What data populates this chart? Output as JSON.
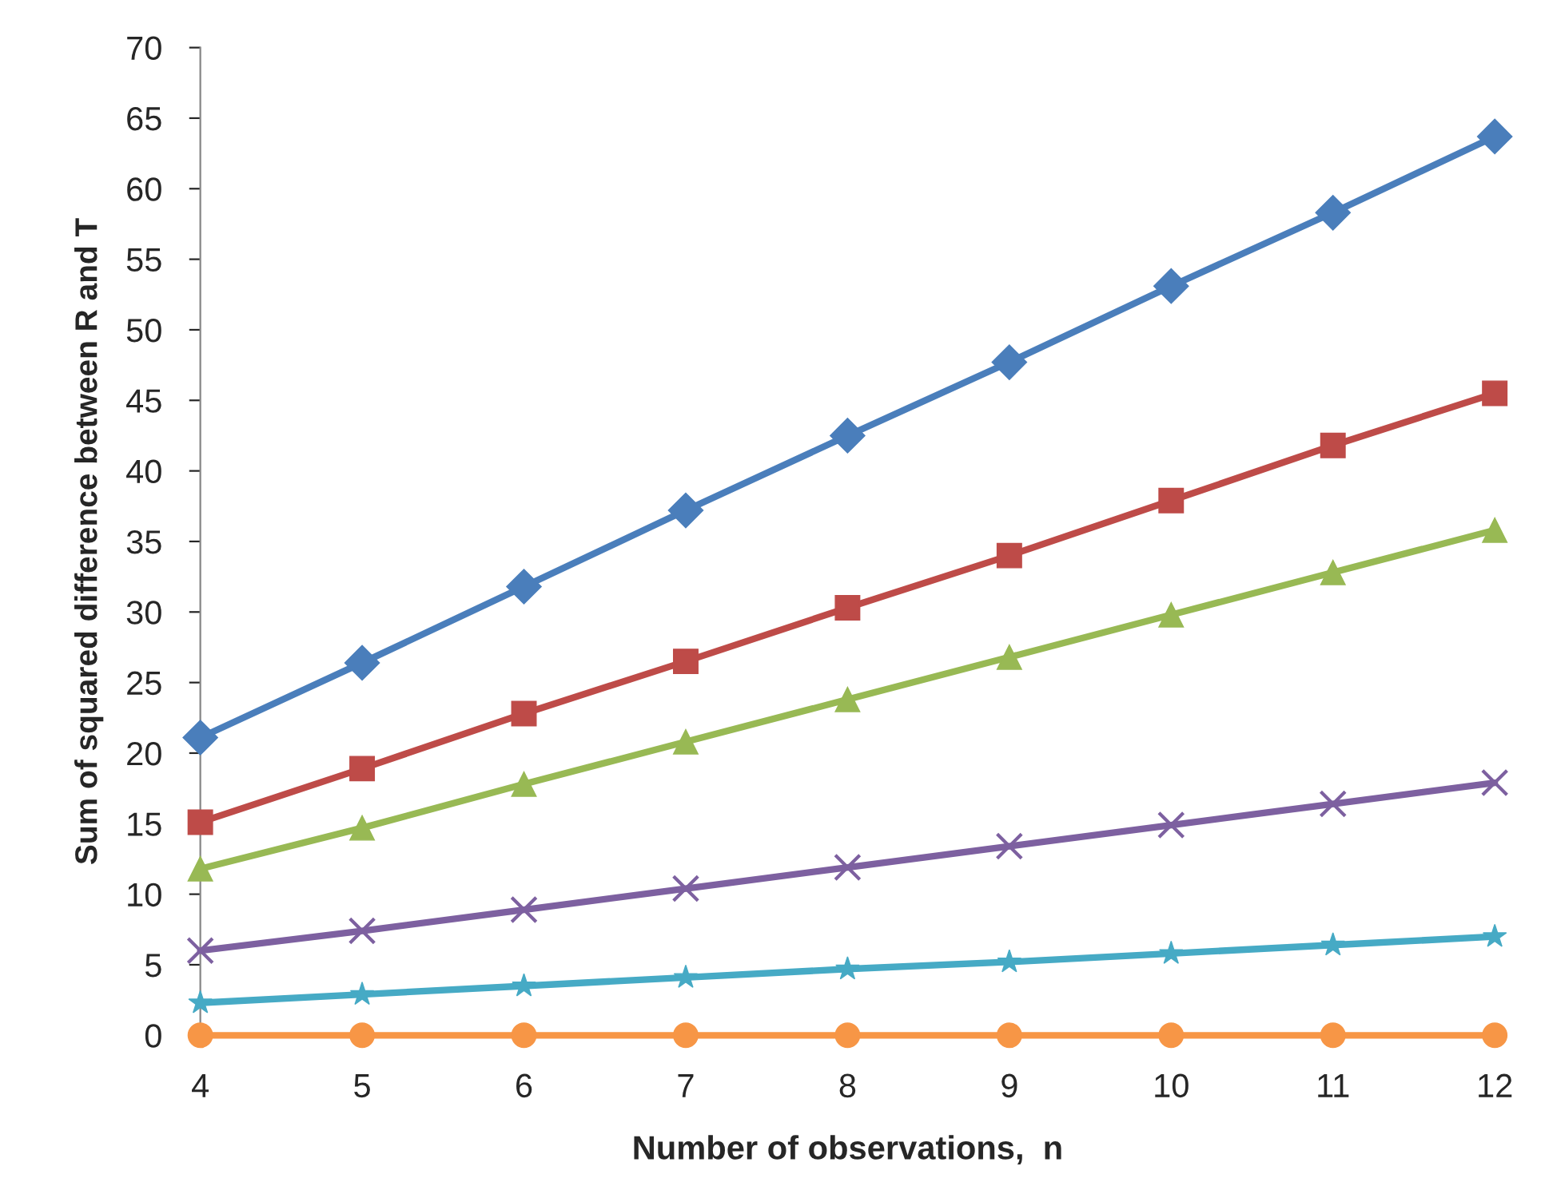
{
  "chart_data": {
    "type": "line",
    "xlabel": "Number of observations,  n",
    "ylabel": "Sum of squared difference between R and T",
    "x": [
      4,
      5,
      6,
      7,
      8,
      9,
      10,
      11,
      12
    ],
    "xlim": [
      4,
      12
    ],
    "xticks": [
      4,
      5,
      6,
      7,
      8,
      9,
      10,
      11,
      12
    ],
    "ylim": [
      0,
      70
    ],
    "yticks": [
      0,
      5,
      10,
      15,
      20,
      25,
      30,
      35,
      40,
      45,
      50,
      55,
      60,
      65,
      70
    ],
    "grid": false,
    "line_style": "solid",
    "series": [
      {
        "color": "#4a7ebb",
        "marker": "diamond",
        "values": [
          21.1,
          26.4,
          31.8,
          37.2,
          42.5,
          47.7,
          53.1,
          58.3,
          63.7
        ]
      },
      {
        "color": "#be4b48",
        "marker": "square",
        "values": [
          15.1,
          18.9,
          22.8,
          26.5,
          30.3,
          34.0,
          37.9,
          41.8,
          45.5
        ]
      },
      {
        "color": "#98b954",
        "marker": "triangle",
        "values": [
          11.8,
          14.7,
          17.8,
          20.8,
          23.8,
          26.8,
          29.8,
          32.8,
          35.8
        ]
      },
      {
        "color": "#7d60a0",
        "marker": "cross",
        "values": [
          6.0,
          7.4,
          8.9,
          10.4,
          11.9,
          13.4,
          14.9,
          16.4,
          17.9
        ]
      },
      {
        "color": "#46aac5",
        "marker": "star",
        "values": [
          2.3,
          2.9,
          3.5,
          4.1,
          4.7,
          5.2,
          5.8,
          6.4,
          7.0
        ]
      },
      {
        "color": "#f79646",
        "marker": "circle",
        "values": [
          0,
          0,
          0,
          0,
          0,
          0,
          0,
          0,
          0
        ]
      }
    ]
  }
}
